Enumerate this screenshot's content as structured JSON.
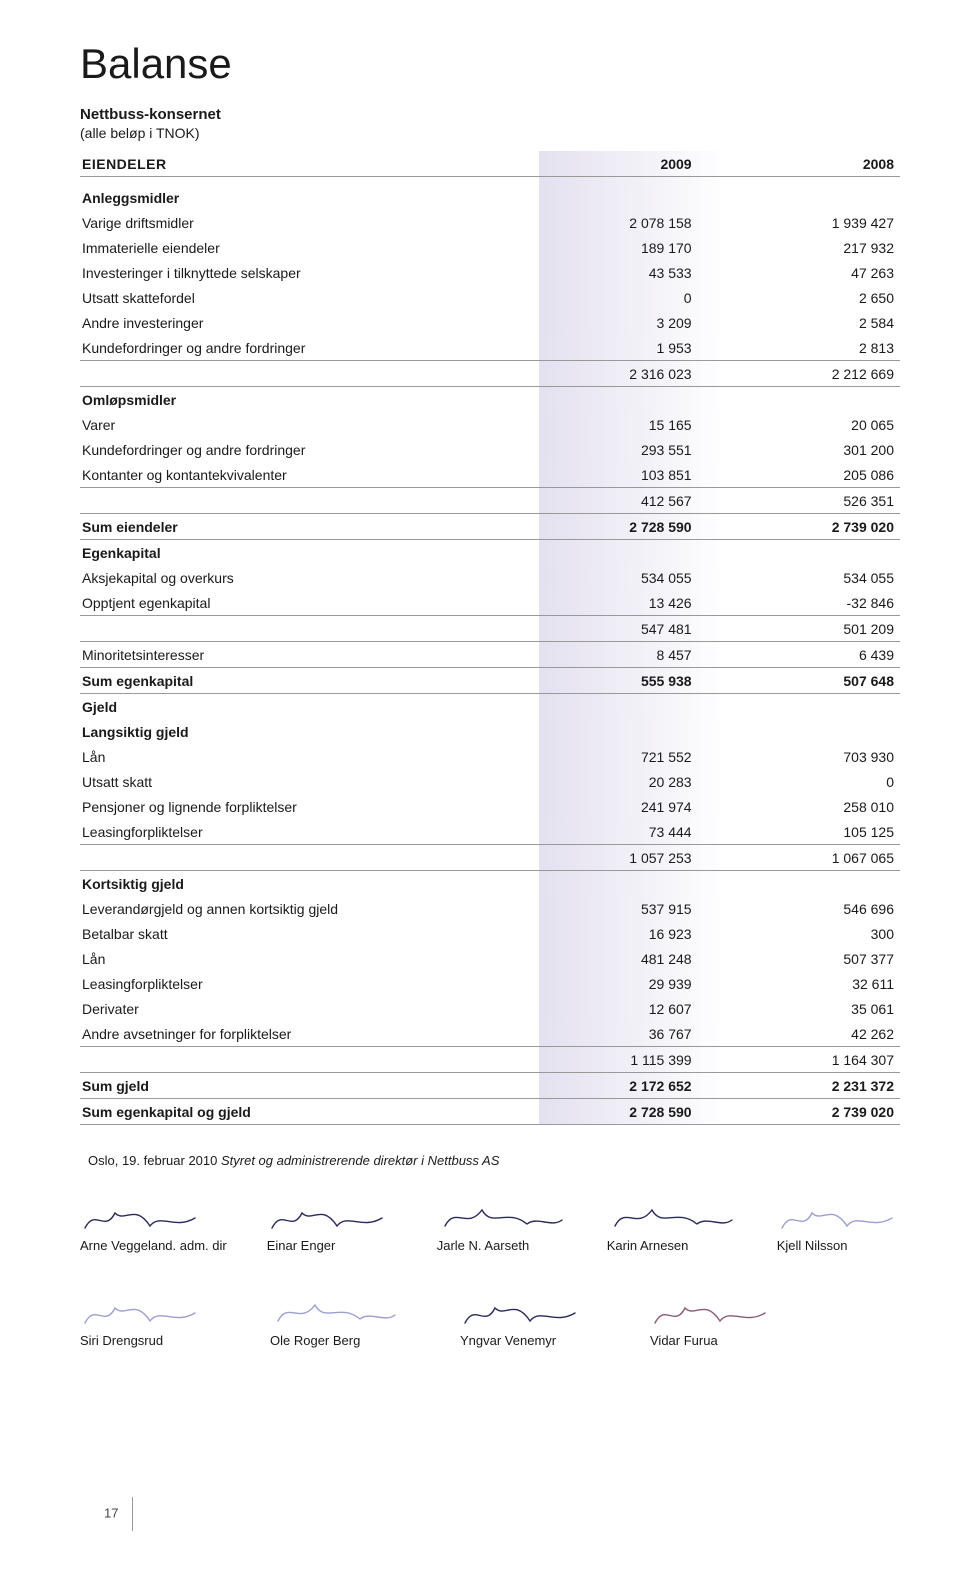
{
  "title": "Balanse",
  "subtitle1": "Nettbuss-konsernet",
  "subtitle2": "(alle beløp i TNOK)",
  "header": {
    "label": "EIENDELER",
    "col1": "2009",
    "col2": "2008"
  },
  "rows": [
    {
      "type": "spacer"
    },
    {
      "type": "section",
      "label": "Anleggsmidler"
    },
    {
      "type": "item",
      "label": "Varige driftsmidler",
      "col1": "2 078 158",
      "col2": "1 939 427"
    },
    {
      "type": "item",
      "label": "Immaterielle eiendeler",
      "col1": "189 170",
      "col2": "217 932"
    },
    {
      "type": "item",
      "label": "Investeringer i tilknyttede selskaper",
      "col1": "43 533",
      "col2": "47 263"
    },
    {
      "type": "item",
      "label": "Utsatt skattefordel",
      "col1": "0",
      "col2": "2 650"
    },
    {
      "type": "item",
      "label": "Andre investeringer",
      "col1": "3 209",
      "col2": "2 584"
    },
    {
      "type": "item",
      "label": "Kundefordringer og andre fordringer",
      "col1": "1 953",
      "col2": "2 813"
    },
    {
      "type": "subtotal",
      "label": "",
      "col1": "2 316 023",
      "col2": "2 212 669"
    },
    {
      "type": "section",
      "label": "Omløpsmidler"
    },
    {
      "type": "item",
      "label": "Varer",
      "col1": "15 165",
      "col2": "20 065"
    },
    {
      "type": "item",
      "label": "Kundefordringer og andre fordringer",
      "col1": "293 551",
      "col2": "301 200"
    },
    {
      "type": "item",
      "label": "Kontanter og kontantekvivalenter",
      "col1": "103 851",
      "col2": "205 086"
    },
    {
      "type": "subtotal",
      "label": "",
      "col1": "412 567",
      "col2": "526 351"
    },
    {
      "type": "total",
      "label": "Sum eiendeler",
      "col1": "2 728 590",
      "col2": "2 739 020"
    },
    {
      "type": "section",
      "label": "Egenkapital"
    },
    {
      "type": "item",
      "label": "Aksjekapital og overkurs",
      "col1": "534 055",
      "col2": "534 055"
    },
    {
      "type": "item",
      "label": "Opptjent egenkapital",
      "col1": "13 426",
      "col2": "-32 846"
    },
    {
      "type": "subtotal",
      "label": "",
      "col1": "547 481",
      "col2": "501 209"
    },
    {
      "type": "item",
      "label": "Minoritetsinteresser",
      "col1": "8 457",
      "col2": "6 439"
    },
    {
      "type": "total",
      "label": "Sum egenkapital",
      "col1": "555 938",
      "col2": "507 648"
    },
    {
      "type": "section",
      "label": "Gjeld"
    },
    {
      "type": "subsection",
      "label": "Langsiktig gjeld"
    },
    {
      "type": "item",
      "label": "Lån",
      "col1": "721 552",
      "col2": "703 930"
    },
    {
      "type": "item",
      "label": "Utsatt skatt",
      "col1": "20 283",
      "col2": "0"
    },
    {
      "type": "item",
      "label": "Pensjoner og lignende forpliktelser",
      "col1": "241 974",
      "col2": "258 010"
    },
    {
      "type": "item",
      "label": "Leasingforpliktelser",
      "col1": "73 444",
      "col2": "105 125"
    },
    {
      "type": "subtotal",
      "label": "",
      "col1": "1 057 253",
      "col2": "1 067 065"
    },
    {
      "type": "subsection",
      "label": "Kortsiktig gjeld"
    },
    {
      "type": "item",
      "label": "Leverandørgjeld og annen kortsiktig gjeld",
      "col1": "537 915",
      "col2": "546 696"
    },
    {
      "type": "item",
      "label": "Betalbar skatt",
      "col1": "16 923",
      "col2": "300"
    },
    {
      "type": "item",
      "label": "Lån",
      "col1": "481 248",
      "col2": "507 377"
    },
    {
      "type": "item",
      "label": "Leasingforpliktelser",
      "col1": "29 939",
      "col2": "32 611"
    },
    {
      "type": "item",
      "label": "Derivater",
      "col1": "12 607",
      "col2": "35 061"
    },
    {
      "type": "item",
      "label": "Andre avsetninger for forpliktelser",
      "col1": "36 767",
      "col2": "42 262"
    },
    {
      "type": "subtotal",
      "label": "",
      "col1": "1 115 399",
      "col2": "1 164 307"
    },
    {
      "type": "total",
      "label": "Sum gjeld",
      "col1": "2 172 652",
      "col2": "2 231 372"
    },
    {
      "type": "total",
      "label": "Sum egenkapital og gjeld",
      "col1": "2 728 590",
      "col2": "2 739 020"
    }
  ],
  "footnote_prefix": "Oslo, 19. februar 2010 ",
  "footnote_italic": "Styret og administrerende direktør i Nettbuss AS",
  "signatures_row1": [
    {
      "name": "Arne Veggeland. adm. dir",
      "color": "#2a2a5a"
    },
    {
      "name": "Einar Enger",
      "color": "#2a2a5a"
    },
    {
      "name": "Jarle N. Aarseth",
      "color": "#2a2a5a"
    },
    {
      "name": "Karin Arnesen",
      "color": "#2a2a5a"
    },
    {
      "name": "Kjell Nilsson",
      "color": "#9aa0d0"
    }
  ],
  "signatures_row2": [
    {
      "name": "Siri Drengsrud",
      "color": "#9aa0d0"
    },
    {
      "name": "Ole Roger Berg",
      "color": "#9aa0d0"
    },
    {
      "name": "Yngvar Venemyr",
      "color": "#2a2a5a"
    },
    {
      "name": "Vidar Furua",
      "color": "#8a5a7a"
    }
  ],
  "page_number": "17"
}
